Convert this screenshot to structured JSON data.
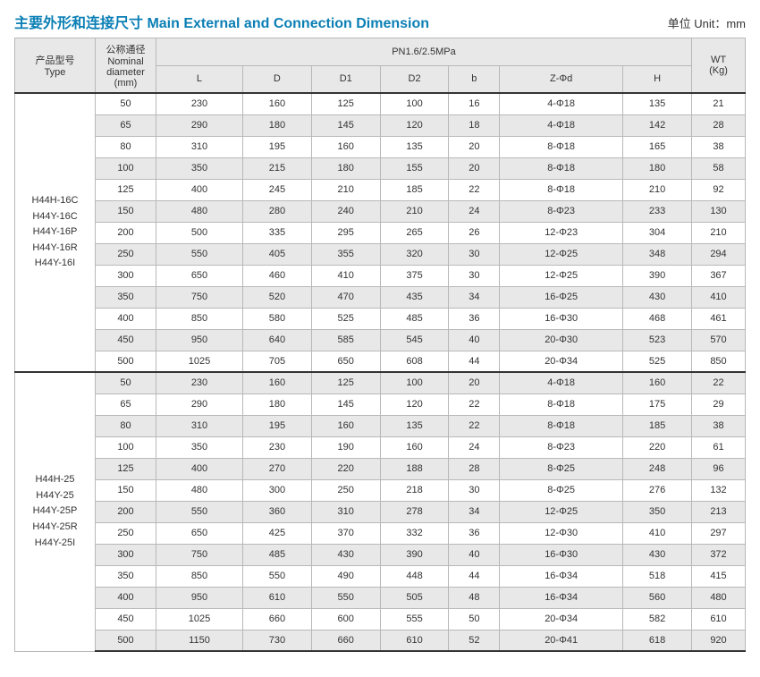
{
  "title": "主要外形和连接尺寸 Main  External and Connection Dimension",
  "unit_label": "单位 Unit：mm",
  "header": {
    "type": "产品型号\nType",
    "dn": "公称通径\nNominal\ndiameter\n(mm)",
    "pn_group": "PN1.6/2.5MPa",
    "wt": "WT\n(Kg)",
    "cols": [
      "L",
      "D",
      "D1",
      "D2",
      "b",
      "Z-Φd",
      "H"
    ]
  },
  "sections": [
    {
      "types": [
        "H44H-16C",
        "H44Y-16C",
        "H44Y-16P",
        "H44Y-16R",
        "H44Y-16I"
      ],
      "rows": [
        {
          "dn": "50",
          "L": "230",
          "D": "160",
          "D1": "125",
          "D2": "100",
          "b": "16",
          "Zd": "4-Φ18",
          "H": "135",
          "WT": "21",
          "alt": false
        },
        {
          "dn": "65",
          "L": "290",
          "D": "180",
          "D1": "145",
          "D2": "120",
          "b": "18",
          "Zd": "4-Φ18",
          "H": "142",
          "WT": "28",
          "alt": true
        },
        {
          "dn": "80",
          "L": "310",
          "D": "195",
          "D1": "160",
          "D2": "135",
          "b": "20",
          "Zd": "8-Φ18",
          "H": "165",
          "WT": "38",
          "alt": false
        },
        {
          "dn": "100",
          "L": "350",
          "D": "215",
          "D1": "180",
          "D2": "155",
          "b": "20",
          "Zd": "8-Φ18",
          "H": "180",
          "WT": "58",
          "alt": true
        },
        {
          "dn": "125",
          "L": "400",
          "D": "245",
          "D1": "210",
          "D2": "185",
          "b": "22",
          "Zd": "8-Φ18",
          "H": "210",
          "WT": "92",
          "alt": false
        },
        {
          "dn": "150",
          "L": "480",
          "D": "280",
          "D1": "240",
          "D2": "210",
          "b": "24",
          "Zd": "8-Φ23",
          "H": "233",
          "WT": "130",
          "alt": true
        },
        {
          "dn": "200",
          "L": "500",
          "D": "335",
          "D1": "295",
          "D2": "265",
          "b": "26",
          "Zd": "12-Φ23",
          "H": "304",
          "WT": "210",
          "alt": false
        },
        {
          "dn": "250",
          "L": "550",
          "D": "405",
          "D1": "355",
          "D2": "320",
          "b": "30",
          "Zd": "12-Φ25",
          "H": "348",
          "WT": "294",
          "alt": true
        },
        {
          "dn": "300",
          "L": "650",
          "D": "460",
          "D1": "410",
          "D2": "375",
          "b": "30",
          "Zd": "12-Φ25",
          "H": "390",
          "WT": "367",
          "alt": false
        },
        {
          "dn": "350",
          "L": "750",
          "D": "520",
          "D1": "470",
          "D2": "435",
          "b": "34",
          "Zd": "16-Φ25",
          "H": "430",
          "WT": "410",
          "alt": true
        },
        {
          "dn": "400",
          "L": "850",
          "D": "580",
          "D1": "525",
          "D2": "485",
          "b": "36",
          "Zd": "16-Φ30",
          "H": "468",
          "WT": "461",
          "alt": false
        },
        {
          "dn": "450",
          "L": "950",
          "D": "640",
          "D1": "585",
          "D2": "545",
          "b": "40",
          "Zd": "20-Φ30",
          "H": "523",
          "WT": "570",
          "alt": true
        },
        {
          "dn": "500",
          "L": "1025",
          "D": "705",
          "D1": "650",
          "D2": "608",
          "b": "44",
          "Zd": "20-Φ34",
          "H": "525",
          "WT": "850",
          "alt": false
        }
      ]
    },
    {
      "types": [
        "H44H-25",
        "H44Y-25",
        "H44Y-25P",
        "H44Y-25R",
        "H44Y-25I"
      ],
      "rows": [
        {
          "dn": "50",
          "L": "230",
          "D": "160",
          "D1": "125",
          "D2": "100",
          "b": "20",
          "Zd": "4-Φ18",
          "H": "160",
          "WT": "22",
          "alt": true
        },
        {
          "dn": "65",
          "L": "290",
          "D": "180",
          "D1": "145",
          "D2": "120",
          "b": "22",
          "Zd": "8-Φ18",
          "H": "175",
          "WT": "29",
          "alt": false
        },
        {
          "dn": "80",
          "L": "310",
          "D": "195",
          "D1": "160",
          "D2": "135",
          "b": "22",
          "Zd": "8-Φ18",
          "H": "185",
          "WT": "38",
          "alt": true
        },
        {
          "dn": "100",
          "L": "350",
          "D": "230",
          "D1": "190",
          "D2": "160",
          "b": "24",
          "Zd": "8-Φ23",
          "H": "220",
          "WT": "61",
          "alt": false
        },
        {
          "dn": "125",
          "L": "400",
          "D": "270",
          "D1": "220",
          "D2": "188",
          "b": "28",
          "Zd": "8-Φ25",
          "H": "248",
          "WT": "96",
          "alt": true
        },
        {
          "dn": "150",
          "L": "480",
          "D": "300",
          "D1": "250",
          "D2": "218",
          "b": "30",
          "Zd": "8-Φ25",
          "H": "276",
          "WT": "132",
          "alt": false
        },
        {
          "dn": "200",
          "L": "550",
          "D": "360",
          "D1": "310",
          "D2": "278",
          "b": "34",
          "Zd": "12-Φ25",
          "H": "350",
          "WT": "213",
          "alt": true
        },
        {
          "dn": "250",
          "L": "650",
          "D": "425",
          "D1": "370",
          "D2": "332",
          "b": "36",
          "Zd": "12-Φ30",
          "H": "410",
          "WT": "297",
          "alt": false
        },
        {
          "dn": "300",
          "L": "750",
          "D": "485",
          "D1": "430",
          "D2": "390",
          "b": "40",
          "Zd": "16-Φ30",
          "H": "430",
          "WT": "372",
          "alt": true
        },
        {
          "dn": "350",
          "L": "850",
          "D": "550",
          "D1": "490",
          "D2": "448",
          "b": "44",
          "Zd": "16-Φ34",
          "H": "518",
          "WT": "415",
          "alt": false
        },
        {
          "dn": "400",
          "L": "950",
          "D": "610",
          "D1": "550",
          "D2": "505",
          "b": "48",
          "Zd": "16-Φ34",
          "H": "560",
          "WT": "480",
          "alt": true
        },
        {
          "dn": "450",
          "L": "1025",
          "D": "660",
          "D1": "600",
          "D2": "555",
          "b": "50",
          "Zd": "20-Φ34",
          "H": "582",
          "WT": "610",
          "alt": false
        },
        {
          "dn": "500",
          "L": "1150",
          "D": "730",
          "D1": "660",
          "D2": "610",
          "b": "52",
          "Zd": "20-Φ41",
          "H": "618",
          "WT": "920",
          "alt": true
        }
      ]
    }
  ],
  "colors": {
    "title": "#0b7fb5",
    "header_bg": "#e8e8e8",
    "row_alt_bg": "#e8e8e8",
    "row_bg": "#ffffff",
    "border": "#b8b8b8",
    "section_border": "#333333"
  }
}
